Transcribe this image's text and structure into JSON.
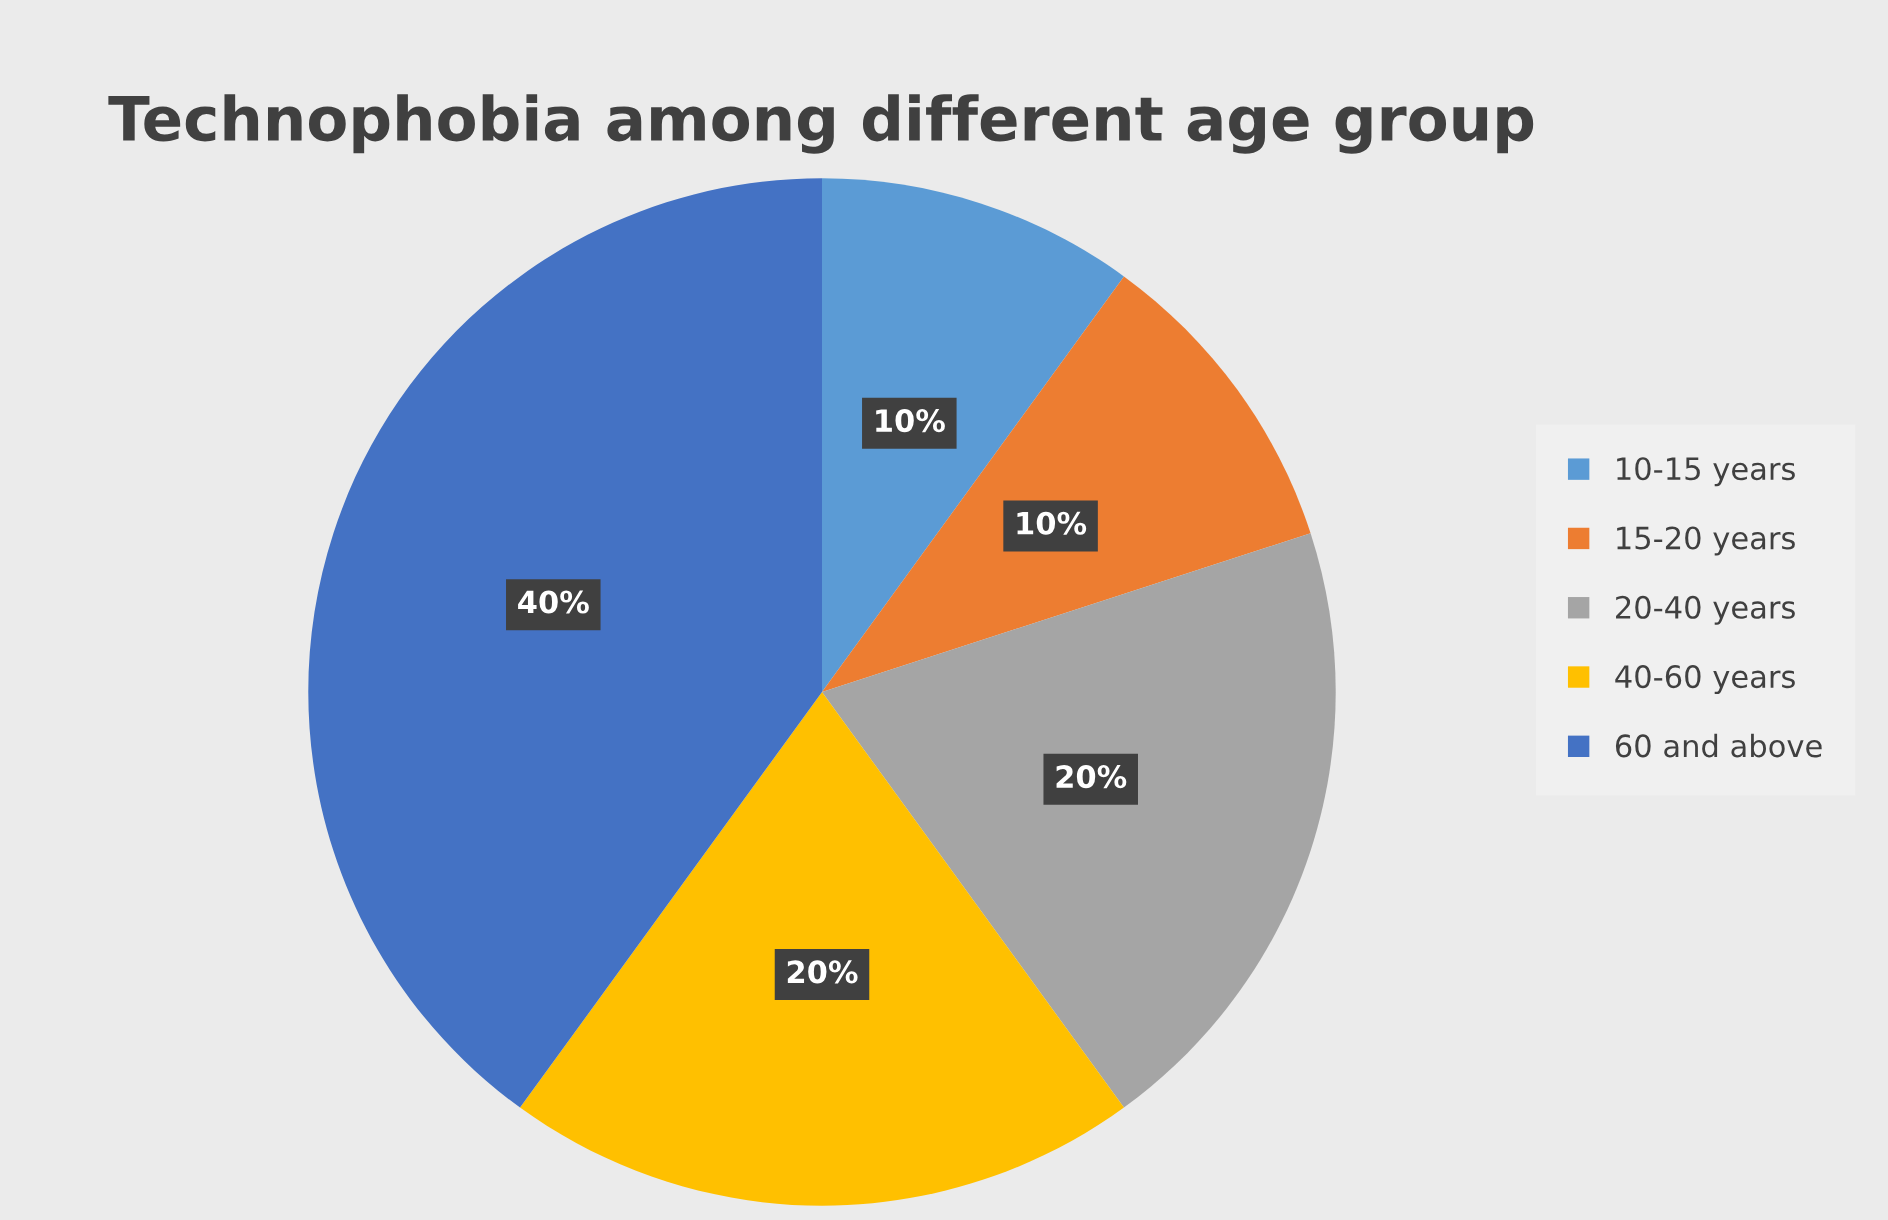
{
  "chart_data": {
    "type": "pie",
    "title": "Technophobia among different age group",
    "categories": [
      "10-15 years",
      "15-20 years",
      "20-40 years",
      "40-60 years",
      "60 and above"
    ],
    "values": [
      10,
      10,
      20,
      20,
      40
    ],
    "colors": [
      "#5b9bd5",
      "#ed7d31",
      "#a5a5a5",
      "#ffc000",
      "#4472c4"
    ],
    "value_labels": [
      "10%",
      "10%",
      "20%",
      "20%",
      "40%"
    ],
    "legend": "right"
  }
}
